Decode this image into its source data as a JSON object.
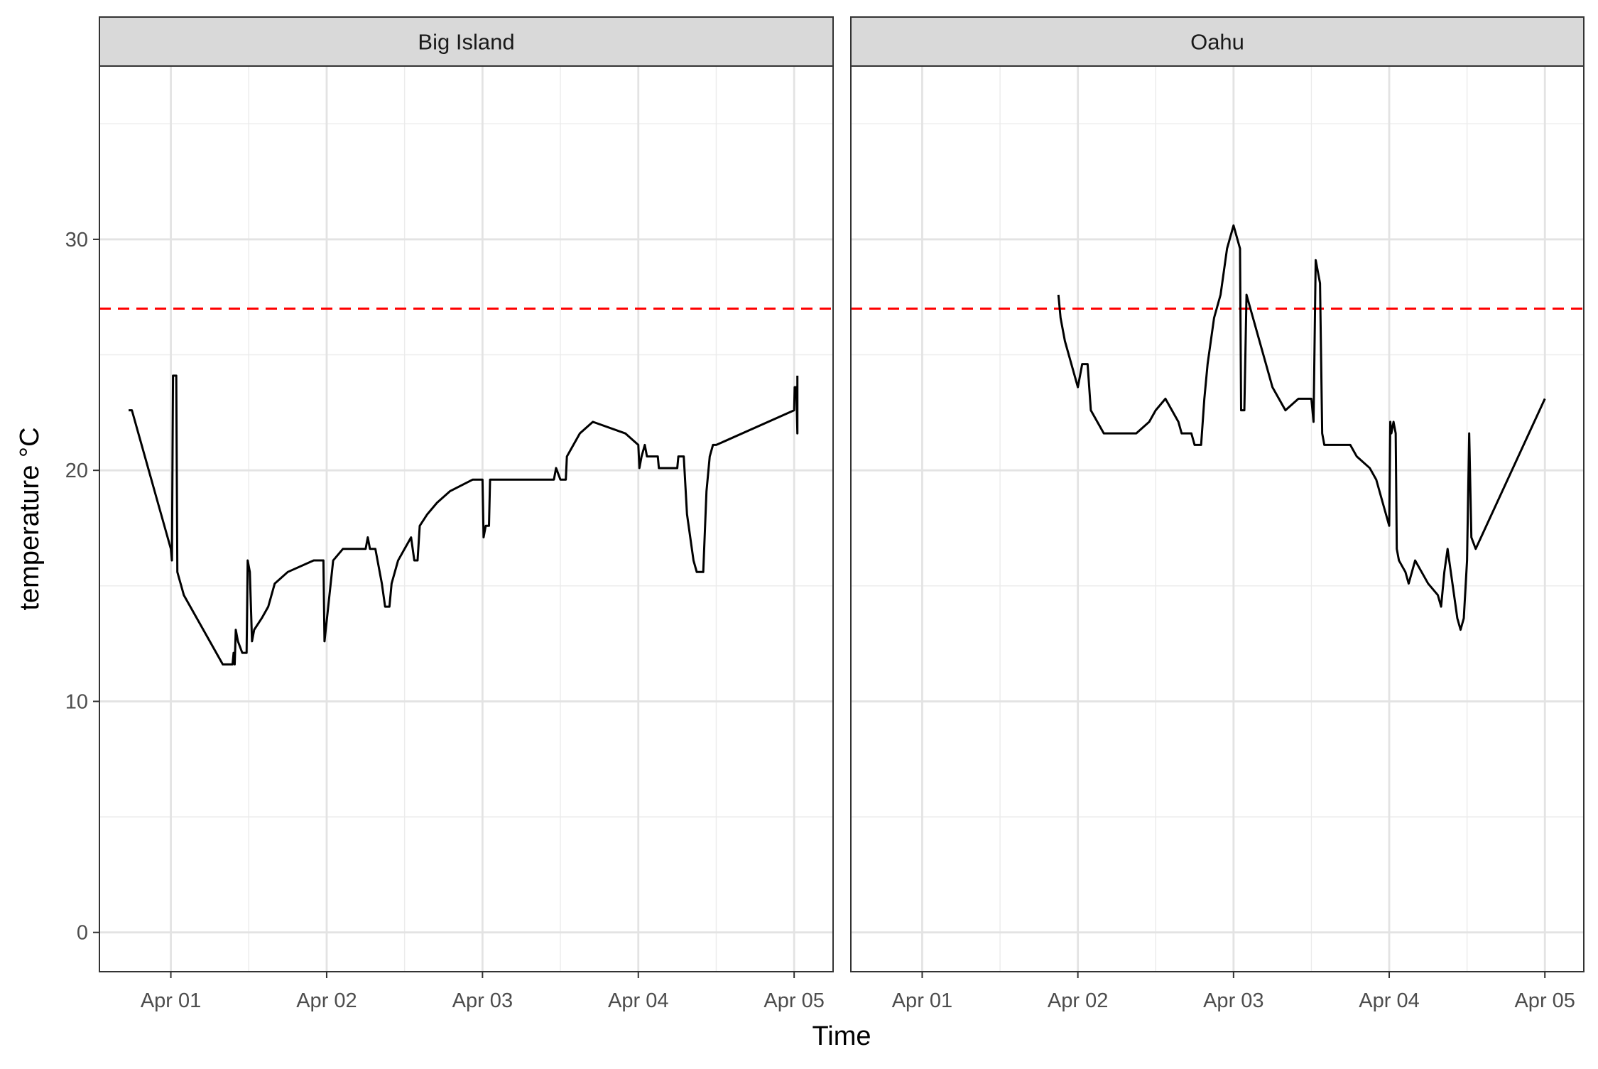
{
  "chart_data": {
    "type": "line",
    "facet_variable": "site",
    "xlabel": "Time",
    "ylabel": "temperature °C",
    "x_ticks": [
      "Apr 01",
      "Apr 02",
      "Apr 03",
      "Apr 04",
      "Apr 05"
    ],
    "y_ticks": [
      0,
      10,
      20,
      30
    ],
    "xlim": [
      "2021-03-31T13:00",
      "2021-04-05T06:00"
    ],
    "ylim": [
      -1.7,
      37.5
    ],
    "grid": true,
    "legend": "none",
    "reference_line": {
      "y": 27,
      "color": "#ff0000",
      "style": "dashed"
    },
    "series_color": "#000000",
    "facets": [
      {
        "name": "Big Island",
        "points": [
          [
            "2021-03-31T17:30",
            22.6
          ],
          [
            "2021-03-31T18:00",
            22.6
          ],
          [
            "2021-03-31T18:30",
            22.1
          ],
          [
            "2021-03-31T19:00",
            21.6
          ],
          [
            "2021-03-31T19:30",
            21.1
          ],
          [
            "2021-03-31T20:00",
            20.6
          ],
          [
            "2021-03-31T20:30",
            20.1
          ],
          [
            "2021-03-31T21:00",
            19.6
          ],
          [
            "2021-03-31T21:30",
            19.1
          ],
          [
            "2021-03-31T22:00",
            18.6
          ],
          [
            "2021-03-31T22:30",
            18.1
          ],
          [
            "2021-03-31T23:00",
            17.6
          ],
          [
            "2021-03-31T23:30",
            17.1
          ],
          [
            "2021-04-01T00:00",
            16.6
          ],
          [
            "2021-04-01T00:10",
            16.1
          ],
          [
            "2021-04-01T00:20",
            24.1
          ],
          [
            "2021-04-01T00:50",
            24.1
          ],
          [
            "2021-04-01T01:00",
            15.6
          ],
          [
            "2021-04-01T01:30",
            15.1
          ],
          [
            "2021-04-01T02:00",
            14.6
          ],
          [
            "2021-04-01T03:00",
            14.1
          ],
          [
            "2021-04-01T04:00",
            13.6
          ],
          [
            "2021-04-01T05:00",
            13.1
          ],
          [
            "2021-04-01T06:00",
            12.6
          ],
          [
            "2021-04-01T07:00",
            12.1
          ],
          [
            "2021-04-01T08:00",
            11.6
          ],
          [
            "2021-04-01T09:00",
            11.6
          ],
          [
            "2021-04-01T09:30",
            11.6
          ],
          [
            "2021-04-01T09:40",
            12.1
          ],
          [
            "2021-04-01T09:50",
            11.6
          ],
          [
            "2021-04-01T10:00",
            13.1
          ],
          [
            "2021-04-01T10:20",
            12.6
          ],
          [
            "2021-04-01T11:00",
            12.1
          ],
          [
            "2021-04-01T11:40",
            12.1
          ],
          [
            "2021-04-01T11:50",
            16.1
          ],
          [
            "2021-04-01T12:10",
            15.6
          ],
          [
            "2021-04-01T12:30",
            12.6
          ],
          [
            "2021-04-01T12:50",
            13.1
          ],
          [
            "2021-04-01T14:00",
            13.6
          ],
          [
            "2021-04-01T15:00",
            14.1
          ],
          [
            "2021-04-01T15:30",
            14.6
          ],
          [
            "2021-04-01T16:00",
            15.1
          ],
          [
            "2021-04-01T18:00",
            15.6
          ],
          [
            "2021-04-01T22:00",
            16.1
          ],
          [
            "2021-04-01T23:30",
            16.1
          ],
          [
            "2021-04-01T23:40",
            12.6
          ],
          [
            "2021-04-02T01:00",
            16.1
          ],
          [
            "2021-04-02T02:30",
            16.6
          ],
          [
            "2021-04-02T06:00",
            16.6
          ],
          [
            "2021-04-02T06:20",
            17.1
          ],
          [
            "2021-04-02T06:40",
            16.6
          ],
          [
            "2021-04-02T07:30",
            16.6
          ],
          [
            "2021-04-02T08:30",
            15.1
          ],
          [
            "2021-04-02T09:00",
            14.1
          ],
          [
            "2021-04-02T09:40",
            14.1
          ],
          [
            "2021-04-02T10:00",
            15.1
          ],
          [
            "2021-04-02T10:30",
            15.6
          ],
          [
            "2021-04-02T11:00",
            16.1
          ],
          [
            "2021-04-02T12:00",
            16.6
          ],
          [
            "2021-04-02T13:00",
            17.1
          ],
          [
            "2021-04-02T13:30",
            16.1
          ],
          [
            "2021-04-02T14:00",
            16.1
          ],
          [
            "2021-04-02T14:20",
            17.6
          ],
          [
            "2021-04-02T15:30",
            18.1
          ],
          [
            "2021-04-02T17:00",
            18.6
          ],
          [
            "2021-04-02T19:00",
            19.1
          ],
          [
            "2021-04-02T22:30",
            19.6
          ],
          [
            "2021-04-03T00:00",
            19.6
          ],
          [
            "2021-04-03T00:10",
            17.1
          ],
          [
            "2021-04-03T00:30",
            17.6
          ],
          [
            "2021-04-03T01:00",
            17.6
          ],
          [
            "2021-04-03T01:10",
            19.6
          ],
          [
            "2021-04-03T11:00",
            19.6
          ],
          [
            "2021-04-03T11:20",
            20.1
          ],
          [
            "2021-04-03T12:00",
            19.6
          ],
          [
            "2021-04-03T12:50",
            19.6
          ],
          [
            "2021-04-03T13:00",
            20.6
          ],
          [
            "2021-04-03T14:00",
            21.1
          ],
          [
            "2021-04-03T15:00",
            21.6
          ],
          [
            "2021-04-03T17:00",
            22.1
          ],
          [
            "2021-04-03T22:00",
            21.6
          ],
          [
            "2021-04-04T00:00",
            21.1
          ],
          [
            "2021-04-04T00:10",
            20.1
          ],
          [
            "2021-04-04T00:30",
            20.6
          ],
          [
            "2021-04-04T01:00",
            21.1
          ],
          [
            "2021-04-04T01:20",
            20.6
          ],
          [
            "2021-04-04T03:00",
            20.6
          ],
          [
            "2021-04-04T03:10",
            20.1
          ],
          [
            "2021-04-04T06:00",
            20.1
          ],
          [
            "2021-04-04T06:10",
            20.6
          ],
          [
            "2021-04-04T07:00",
            20.6
          ],
          [
            "2021-04-04T07:30",
            18.1
          ],
          [
            "2021-04-04T08:00",
            17.1
          ],
          [
            "2021-04-04T08:30",
            16.1
          ],
          [
            "2021-04-04T09:00",
            15.6
          ],
          [
            "2021-04-04T10:00",
            15.6
          ],
          [
            "2021-04-04T10:30",
            19.1
          ],
          [
            "2021-04-04T11:00",
            20.6
          ],
          [
            "2021-04-04T11:30",
            21.1
          ],
          [
            "2021-04-04T12:00",
            21.1
          ],
          [
            "2021-04-05T00:00",
            22.6
          ],
          [
            "2021-04-05T00:05",
            23.6
          ],
          [
            "2021-04-05T00:20",
            23.6
          ],
          [
            "2021-04-05T00:30",
            21.6
          ],
          [
            "2021-04-05T00:30",
            24.1
          ]
        ]
      },
      {
        "name": "Oahu",
        "points": [
          [
            "2021-04-01T21:00",
            27.6
          ],
          [
            "2021-04-01T21:20",
            26.6
          ],
          [
            "2021-04-01T21:40",
            26.1
          ],
          [
            "2021-04-01T22:00",
            25.6
          ],
          [
            "2021-04-01T22:30",
            25.1
          ],
          [
            "2021-04-01T23:00",
            24.6
          ],
          [
            "2021-04-01T23:30",
            24.1
          ],
          [
            "2021-04-02T00:00",
            23.6
          ],
          [
            "2021-04-02T00:40",
            24.6
          ],
          [
            "2021-04-02T01:30",
            24.6
          ],
          [
            "2021-04-02T02:00",
            22.6
          ],
          [
            "2021-04-02T03:00",
            22.1
          ],
          [
            "2021-04-02T04:00",
            21.6
          ],
          [
            "2021-04-02T09:00",
            21.6
          ],
          [
            "2021-04-02T11:00",
            22.1
          ],
          [
            "2021-04-02T12:00",
            22.6
          ],
          [
            "2021-04-02T13:30",
            23.1
          ],
          [
            "2021-04-02T14:30",
            22.6
          ],
          [
            "2021-04-02T15:30",
            22.1
          ],
          [
            "2021-04-02T16:00",
            21.6
          ],
          [
            "2021-04-02T17:30",
            21.6
          ],
          [
            "2021-04-02T18:00",
            21.1
          ],
          [
            "2021-04-02T19:00",
            21.1
          ],
          [
            "2021-04-02T19:30",
            23.1
          ],
          [
            "2021-04-02T20:00",
            24.6
          ],
          [
            "2021-04-02T20:30",
            25.6
          ],
          [
            "2021-04-02T21:00",
            26.6
          ],
          [
            "2021-04-02T21:30",
            27.1
          ],
          [
            "2021-04-02T22:00",
            27.6
          ],
          [
            "2021-04-02T22:30",
            28.6
          ],
          [
            "2021-04-02T23:00",
            29.6
          ],
          [
            "2021-04-02T23:30",
            30.1
          ],
          [
            "2021-04-03T00:00",
            30.6
          ],
          [
            "2021-04-03T00:30",
            30.1
          ],
          [
            "2021-04-03T01:00",
            29.6
          ],
          [
            "2021-04-03T01:10",
            22.6
          ],
          [
            "2021-04-03T01:40",
            22.6
          ],
          [
            "2021-04-03T02:00",
            27.6
          ],
          [
            "2021-04-03T02:30",
            27.1
          ],
          [
            "2021-04-03T03:00",
            26.6
          ],
          [
            "2021-04-03T03:30",
            26.1
          ],
          [
            "2021-04-03T04:00",
            25.6
          ],
          [
            "2021-04-03T04:30",
            25.1
          ],
          [
            "2021-04-03T05:00",
            24.6
          ],
          [
            "2021-04-03T05:30",
            24.1
          ],
          [
            "2021-04-03T06:00",
            23.6
          ],
          [
            "2021-04-03T07:00",
            23.1
          ],
          [
            "2021-04-03T08:00",
            22.6
          ],
          [
            "2021-04-03T10:00",
            23.1
          ],
          [
            "2021-04-03T12:00",
            23.1
          ],
          [
            "2021-04-03T12:20",
            22.1
          ],
          [
            "2021-04-03T12:40",
            29.1
          ],
          [
            "2021-04-03T13:00",
            28.6
          ],
          [
            "2021-04-03T13:20",
            28.1
          ],
          [
            "2021-04-03T13:40",
            21.6
          ],
          [
            "2021-04-03T14:00",
            21.1
          ],
          [
            "2021-04-03T18:00",
            21.1
          ],
          [
            "2021-04-03T19:00",
            20.6
          ],
          [
            "2021-04-03T21:00",
            20.1
          ],
          [
            "2021-04-03T22:00",
            19.6
          ],
          [
            "2021-04-03T22:30",
            19.1
          ],
          [
            "2021-04-03T23:00",
            18.6
          ],
          [
            "2021-04-03T23:30",
            18.1
          ],
          [
            "2021-04-04T00:00",
            17.6
          ],
          [
            "2021-04-04T00:10",
            22.1
          ],
          [
            "2021-04-04T00:20",
            21.6
          ],
          [
            "2021-04-04T00:40",
            22.1
          ],
          [
            "2021-04-04T01:00",
            21.6
          ],
          [
            "2021-04-04T01:10",
            16.6
          ],
          [
            "2021-04-04T01:30",
            16.1
          ],
          [
            "2021-04-04T02:30",
            15.6
          ],
          [
            "2021-04-04T03:00",
            15.1
          ],
          [
            "2021-04-04T03:30",
            15.6
          ],
          [
            "2021-04-04T04:00",
            16.1
          ],
          [
            "2021-04-04T05:00",
            15.6
          ],
          [
            "2021-04-04T06:00",
            15.1
          ],
          [
            "2021-04-04T07:30",
            14.6
          ],
          [
            "2021-04-04T08:00",
            14.1
          ],
          [
            "2021-04-04T08:30",
            15.6
          ],
          [
            "2021-04-04T09:00",
            16.6
          ],
          [
            "2021-04-04T09:30",
            15.6
          ],
          [
            "2021-04-04T10:00",
            14.6
          ],
          [
            "2021-04-04T10:30",
            13.6
          ],
          [
            "2021-04-04T11:00",
            13.1
          ],
          [
            "2021-04-04T11:30",
            13.6
          ],
          [
            "2021-04-04T12:00",
            16.1
          ],
          [
            "2021-04-04T12:20",
            21.6
          ],
          [
            "2021-04-04T12:40",
            17.1
          ],
          [
            "2021-04-04T13:20",
            16.6
          ],
          [
            "2021-04-05T00:00",
            23.1
          ]
        ]
      }
    ]
  }
}
